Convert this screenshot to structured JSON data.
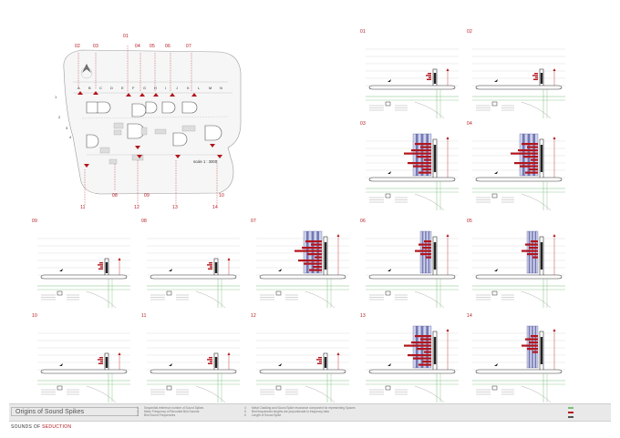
{
  "map": {
    "top_labels": [
      "02",
      "03",
      "01",
      "04",
      "05",
      "06",
      "07"
    ],
    "bottom_labels": [
      "11",
      "08",
      "09",
      "12",
      "13",
      "14",
      "10"
    ],
    "letters": [
      "A",
      "B",
      "C",
      "D",
      "E",
      "F",
      "G",
      "H",
      "I",
      "J",
      "K",
      "L",
      "M",
      "N"
    ],
    "side_numbers": [
      "1",
      "2",
      "3",
      "4"
    ],
    "scale": "scale  1 : 3000"
  },
  "panels": [
    {
      "id": "01"
    },
    {
      "id": "02"
    },
    {
      "id": "03"
    },
    {
      "id": "04"
    },
    {
      "id": "09"
    },
    {
      "id": "08"
    },
    {
      "id": "07"
    },
    {
      "id": "06"
    },
    {
      "id": "05"
    },
    {
      "id": "10"
    },
    {
      "id": "11"
    },
    {
      "id": "12"
    },
    {
      "id": "13"
    },
    {
      "id": "14"
    }
  ],
  "legend": {
    "title": "Origins of Sound Spikes",
    "col1": [
      "Sequential reference number of Sound Spikes",
      "Mean Frequency of Recorded Bird Sounds",
      "Bird Sound Frequencies"
    ],
    "col2": [
      "Metal Cladding and Sound Spike resonance component for representing Spaces",
      "Bird frequencies lengths are proportionate to frequency data",
      "Length of Sound Spike"
    ],
    "col1_nums": [
      "1",
      "2",
      "3"
    ],
    "col2_nums": [
      "4",
      "5",
      "6"
    ]
  },
  "footer": {
    "prefix": "SOUNDS OF",
    "accent": "SEDUCTION"
  },
  "colors": {
    "accent": "#b3141a",
    "spectrum": "#3a3f8f",
    "ground": "#7bbf7b"
  }
}
